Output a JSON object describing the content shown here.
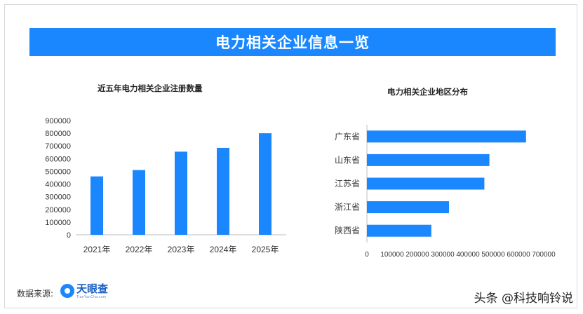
{
  "banner": {
    "title": "电力相关企业信息一览"
  },
  "footer": {
    "source_label": "数据来源:",
    "logo_text": "天眼查",
    "logo_subtext": "TianYanCha.com",
    "watermark": "头条 @科技响铃说"
  },
  "colors": {
    "accent": "#1a87ff",
    "bar": "#1a87ff"
  },
  "chart_data": [
    {
      "type": "bar",
      "orientation": "vertical",
      "title": "近五年电力相关企业注册数量",
      "categories": [
        "2021年",
        "2022年",
        "2023年",
        "2024年",
        "2025年"
      ],
      "values": [
        460000,
        510000,
        655000,
        685000,
        800000
      ],
      "ylim": [
        0,
        900000
      ],
      "yticks": [
        "0",
        "100000",
        "200000",
        "300000",
        "400000",
        "500000",
        "600000",
        "700000",
        "800000",
        "900000"
      ],
      "xlabel": "",
      "ylabel": "",
      "grid": false
    },
    {
      "type": "bar",
      "orientation": "horizontal",
      "title": "电力相关企业地区分布",
      "categories": [
        "广东省",
        "山东省",
        "江苏省",
        "浙江省",
        "陕西省"
      ],
      "values": [
        630000,
        485000,
        465000,
        325000,
        255000
      ],
      "xlim": [
        0,
        700000
      ],
      "xticks": [
        "0",
        "100000",
        "200000",
        "300000",
        "400000",
        "500000",
        "600000",
        "700000"
      ],
      "xlabel": "",
      "ylabel": "",
      "grid": false
    }
  ]
}
